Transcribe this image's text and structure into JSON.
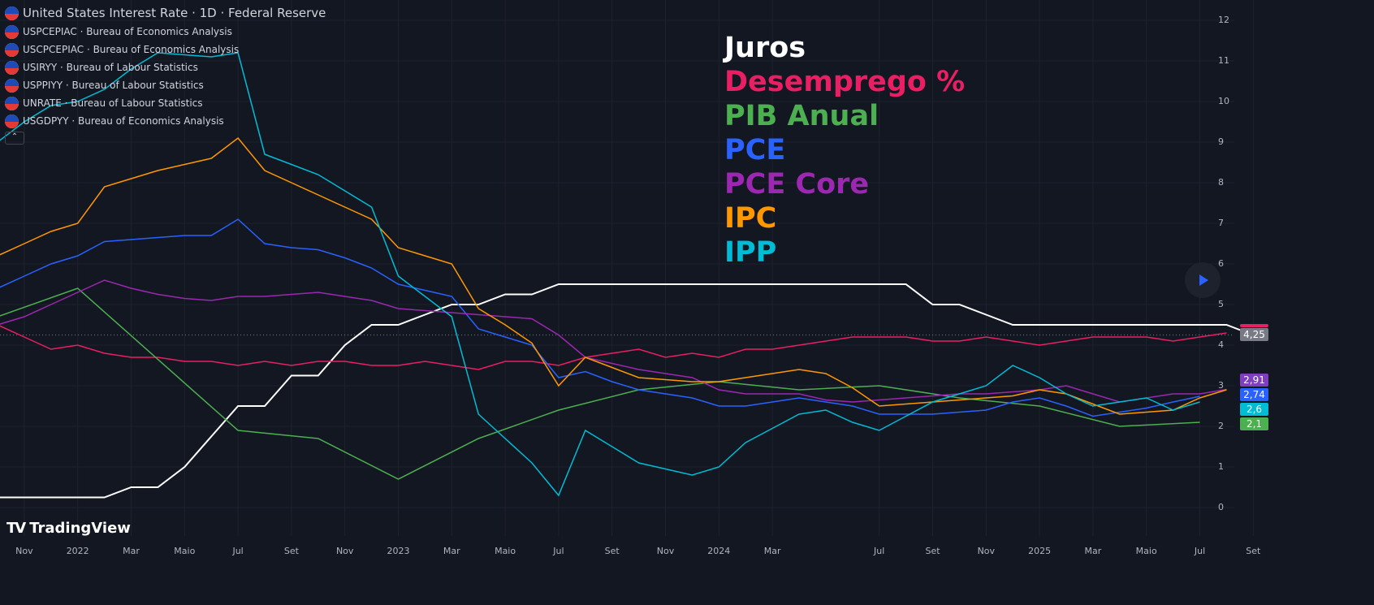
{
  "legend": {
    "main": "United States Interest Rate · 1D · Federal Reserve",
    "rows": [
      "USPCEPIAC · Bureau of Economics Analysis",
      "USCPCEPIAC · Bureau of Economics Analysis",
      "USIRYY · Bureau of Labour Statistics",
      "USPPIYY · Bureau of Labour Statistics",
      "UNRATE · Bureau of Labour Statistics",
      "USGDPYY · Bureau of Economics Analysis"
    ],
    "collapse_icon": "chevron-up"
  },
  "overlay": [
    {
      "text": "Juros",
      "color": "#ffffff"
    },
    {
      "text": "Desemprego %",
      "color": "#e91e63"
    },
    {
      "text": "PIB Anual",
      "color": "#4caf50"
    },
    {
      "text": "PCE",
      "color": "#2962ff"
    },
    {
      "text": "PCE Core",
      "color": "#9c27b0"
    },
    {
      "text": "IPC",
      "color": "#ff9800"
    },
    {
      "text": "IPP",
      "color": "#00bcd4"
    }
  ],
  "price_tags": [
    {
      "text": "4,25",
      "color": "#787b86",
      "value": 4.25
    },
    {
      "text": "2,6",
      "color": "#00bcd4",
      "value": 2.6
    },
    {
      "text": "2,91",
      "color": "#7e3fbf",
      "value": 2.91
    },
    {
      "text": "2,74",
      "color": "#2962ff",
      "value": 2.74
    },
    {
      "text": "2,1",
      "color": "#4caf50",
      "value": 2.1
    }
  ],
  "branding": "TradingView",
  "chart_data": {
    "type": "line",
    "start": "2021-10",
    "ylim": [
      -0.5,
      12.4
    ],
    "yticks": [
      "0",
      "1",
      "2",
      "3",
      "4",
      "5",
      "6",
      "7",
      "8",
      "9",
      "10",
      "11",
      "12"
    ],
    "xticks": [
      {
        "label": "Nov",
        "m": 1
      },
      {
        "label": "2022",
        "m": 3
      },
      {
        "label": "Mar",
        "m": 5
      },
      {
        "label": "Maio",
        "m": 7
      },
      {
        "label": "Jul",
        "m": 9
      },
      {
        "label": "Set",
        "m": 11
      },
      {
        "label": "Nov",
        "m": 13
      },
      {
        "label": "2023",
        "m": 15
      },
      {
        "label": "Mar",
        "m": 17
      },
      {
        "label": "Maio",
        "m": 19
      },
      {
        "label": "Jul",
        "m": 21
      },
      {
        "label": "Set",
        "m": 23
      },
      {
        "label": "Nov",
        "m": 25
      },
      {
        "label": "2024",
        "m": 27
      },
      {
        "label": "Mar",
        "m": 29
      },
      {
        "label": "Jul",
        "m": 33
      },
      {
        "label": "Set",
        "m": 35
      },
      {
        "label": "Nov",
        "m": 37
      },
      {
        "label": "2025",
        "m": 39
      },
      {
        "label": "Mar",
        "m": 41
      },
      {
        "label": "Maio",
        "m": 43
      },
      {
        "label": "Jul",
        "m": 45
      },
      {
        "label": "Set",
        "m": 47
      }
    ],
    "series": [
      {
        "name": "Juros",
        "color": "#ffffff",
        "width": 2,
        "values": [
          0.25,
          0.25,
          0.25,
          0.25,
          0.25,
          0.5,
          0.5,
          1.0,
          1.75,
          2.5,
          2.5,
          3.25,
          3.25,
          4.0,
          4.5,
          4.5,
          4.75,
          5.0,
          5.0,
          5.25,
          5.25,
          5.5,
          5.5,
          5.5,
          5.5,
          5.5,
          5.5,
          5.5,
          5.5,
          5.5,
          5.5,
          5.5,
          5.5,
          5.5,
          5.5,
          5.0,
          5.0,
          4.75,
          4.5,
          4.5,
          4.5,
          4.5,
          4.5,
          4.5,
          4.5,
          4.5,
          4.5,
          4.25
        ]
      },
      {
        "name": "Desemprego %",
        "color": "#e91e63",
        "width": 1.5,
        "values": [
          4.5,
          4.2,
          3.9,
          4.0,
          3.8,
          3.7,
          3.7,
          3.6,
          3.6,
          3.5,
          3.6,
          3.5,
          3.6,
          3.6,
          3.5,
          3.5,
          3.6,
          3.5,
          3.4,
          3.6,
          3.6,
          3.5,
          3.7,
          3.8,
          3.9,
          3.7,
          3.8,
          3.7,
          3.9,
          3.9,
          4.0,
          4.1,
          4.2,
          4.2,
          4.2,
          4.1,
          4.1,
          4.2,
          4.1,
          4.0,
          4.1,
          4.2,
          4.2,
          4.2,
          4.1,
          4.2,
          4.3
        ]
      },
      {
        "name": "PIB Anual",
        "color": "#4caf50",
        "width": 1.5,
        "points": [
          [
            0,
            4.7
          ],
          [
            3,
            5.4
          ],
          [
            9,
            1.9
          ],
          [
            12,
            1.7
          ],
          [
            15,
            0.7
          ],
          [
            18,
            1.7
          ],
          [
            21,
            2.4
          ],
          [
            24,
            2.9
          ],
          [
            27,
            3.1
          ],
          [
            30,
            2.9
          ],
          [
            33,
            3.0
          ],
          [
            36,
            2.7
          ],
          [
            39,
            2.5
          ],
          [
            42,
            2.0
          ],
          [
            45,
            2.1
          ]
        ]
      },
      {
        "name": "PCE",
        "color": "#2962ff",
        "width": 1.5,
        "values": [
          5.4,
          5.7,
          6.0,
          6.2,
          6.55,
          6.6,
          6.65,
          6.7,
          6.7,
          7.1,
          6.5,
          6.4,
          6.35,
          6.15,
          5.9,
          5.5,
          5.35,
          5.2,
          4.4,
          4.2,
          4.0,
          3.2,
          3.35,
          3.1,
          2.9,
          2.8,
          2.7,
          2.5,
          2.5,
          2.6,
          2.7,
          2.6,
          2.5,
          2.3,
          2.3,
          2.3,
          2.35,
          2.4,
          2.6,
          2.7,
          2.5,
          2.25,
          2.35,
          2.45,
          2.6,
          2.74
        ]
      },
      {
        "name": "PCE Core",
        "color": "#9c27b0",
        "width": 1.5,
        "values": [
          4.5,
          4.7,
          5.0,
          5.3,
          5.6,
          5.4,
          5.25,
          5.15,
          5.1,
          5.2,
          5.2,
          5.25,
          5.3,
          5.2,
          5.1,
          4.9,
          4.85,
          4.8,
          4.75,
          4.7,
          4.65,
          4.25,
          3.7,
          3.55,
          3.4,
          3.3,
          3.2,
          2.9,
          2.8,
          2.8,
          2.8,
          2.65,
          2.6,
          2.65,
          2.7,
          2.75,
          2.8,
          2.8,
          2.85,
          2.9,
          3.0,
          2.8,
          2.6,
          2.7,
          2.8,
          2.8,
          2.91
        ]
      },
      {
        "name": "IPC",
        "color": "#ff9800",
        "width": 1.5,
        "values": [
          6.2,
          6.5,
          6.8,
          7.0,
          7.9,
          8.1,
          8.3,
          8.45,
          8.6,
          9.1,
          8.3,
          8.0,
          7.7,
          7.4,
          7.1,
          6.4,
          6.2,
          6.0,
          4.9,
          4.5,
          4.05,
          3.0,
          3.7,
          3.45,
          3.2,
          3.15,
          3.1,
          3.1,
          3.2,
          3.3,
          3.4,
          3.3,
          2.95,
          2.5,
          2.55,
          2.6,
          2.65,
          2.7,
          2.75,
          2.9,
          2.8,
          2.55,
          2.3,
          2.35,
          2.4,
          2.7,
          2.9
        ]
      },
      {
        "name": "IPP",
        "color": "#00bcd4",
        "width": 1.5,
        "values": [
          9.0,
          9.5,
          9.9,
          10.0,
          10.3,
          10.8,
          11.2,
          11.15,
          11.1,
          11.2,
          8.7,
          8.45,
          8.2,
          7.8,
          7.4,
          5.7,
          5.2,
          4.7,
          2.3,
          1.7,
          1.1,
          0.3,
          1.9,
          1.5,
          1.1,
          0.95,
          0.8,
          1.0,
          1.6,
          1.95,
          2.3,
          2.4,
          2.1,
          1.9,
          2.25,
          2.6,
          2.8,
          3.0,
          3.5,
          3.2,
          2.8,
          2.5,
          2.6,
          2.7,
          2.4,
          2.6
        ]
      }
    ]
  }
}
